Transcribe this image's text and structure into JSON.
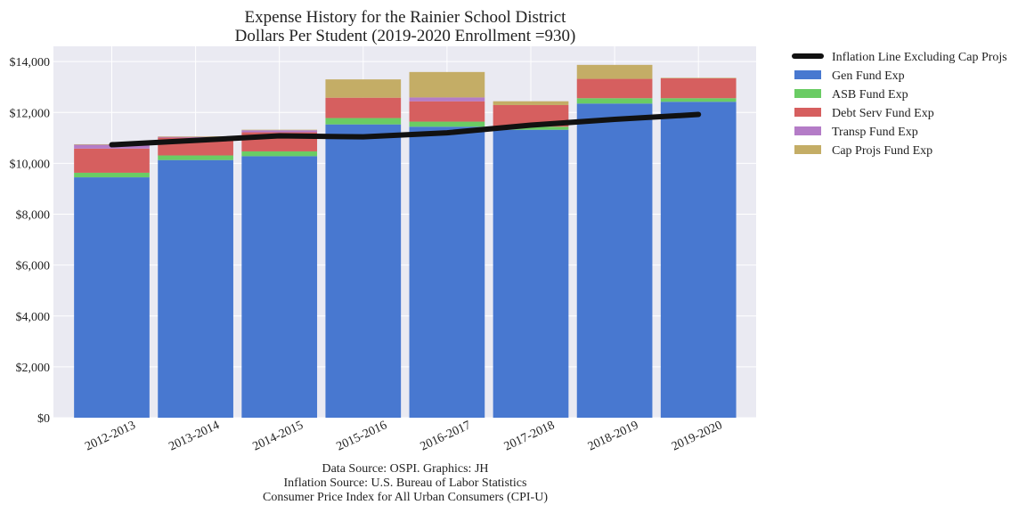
{
  "chart_data": {
    "type": "bar",
    "stacked": true,
    "title": "Expense History for the Rainier School District",
    "subtitle": "Dollars Per Student (2019-2020 Enrollment =930)",
    "xlabel": "",
    "ylabel": "",
    "ylim": [
      0,
      14600
    ],
    "y_ticks": [
      0,
      2000,
      4000,
      6000,
      8000,
      10000,
      12000,
      14000
    ],
    "y_tick_labels": [
      "$0",
      "$2,000",
      "$4,000",
      "$6,000",
      "$8,000",
      "$10,000",
      "$12,000",
      "$14,000"
    ],
    "grid": true,
    "legend_position": "outside-right",
    "categories": [
      "2012-2013",
      "2013-2014",
      "2014-2015",
      "2015-2016",
      "2016-2017",
      "2017-2018",
      "2018-2019",
      "2019-2020"
    ],
    "series": [
      {
        "name": "Gen Fund Exp",
        "color": "#4878d0",
        "values": [
          9450,
          10130,
          10280,
          11530,
          11440,
          11320,
          12350,
          12420
        ]
      },
      {
        "name": "ASB Fund Exp",
        "color": "#6acc64",
        "values": [
          180,
          180,
          190,
          250,
          200,
          120,
          210,
          140
        ]
      },
      {
        "name": "Debt Serv Fund Exp",
        "color": "#d65f5f",
        "values": [
          950,
          700,
          750,
          800,
          800,
          850,
          760,
          780
        ]
      },
      {
        "name": "Transp Fund Exp",
        "color": "#b47cc7",
        "values": [
          150,
          30,
          80,
          0,
          150,
          0,
          0,
          0
        ]
      },
      {
        "name": "Cap Projs Fund Exp",
        "color": "#c4ad66",
        "values": [
          20,
          20,
          20,
          720,
          1000,
          150,
          550,
          20
        ]
      }
    ],
    "line": {
      "name": "Inflation Line Excluding Cap Projs",
      "color": "#111111",
      "values": [
        10730,
        10900,
        11080,
        11040,
        11200,
        11500,
        11730,
        11920
      ]
    }
  },
  "source_lines": [
    "Data Source: OSPI. Graphics: JH",
    "Inflation Source: U.S. Bureau of Labor Statistics",
    "Consumer Price Index for All Urban Consumers (CPI-U)"
  ]
}
